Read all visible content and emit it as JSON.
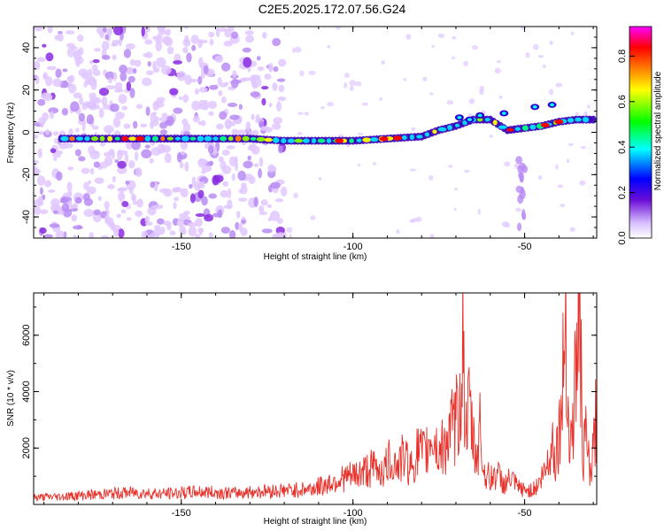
{
  "title": "C2E5.2025.172.07.56.G24",
  "chart_data": [
    {
      "type": "heatmap",
      "xlabel": "Height of straight line (km)",
      "ylabel": "Frequency (Hz)",
      "xlim": [
        -193,
        -29
      ],
      "ylim": [
        -50,
        50
      ],
      "xticks": [
        -150,
        -100,
        -50
      ],
      "yticks": [
        40,
        20,
        0,
        -20,
        -40
      ],
      "colorbar": {
        "label": "Normalized spectral amplitude",
        "range": [
          0.0,
          0.93
        ],
        "ticks": [
          0.0,
          0.2,
          0.4,
          0.6,
          0.8
        ],
        "colormap": "rainbow",
        "colors": [
          "#ffffff",
          "#e0c8ff",
          "#8a2be2",
          "#0000ff",
          "#00ffff",
          "#00ff00",
          "#ffff00",
          "#ff8000",
          "#ff0000",
          "#ff00ff"
        ]
      },
      "ridge": {
        "description_points_x": [
          -190,
          -170,
          -150,
          -130,
          -120,
          -110,
          -100,
          -90,
          -80,
          -75,
          -70,
          -65,
          -60,
          -55,
          -50,
          -45,
          -40,
          -35,
          -30
        ],
        "description_points_y": [
          -3,
          -3,
          -3,
          -3,
          -4,
          -4,
          -4,
          -3,
          -2,
          1,
          3,
          6,
          6,
          1,
          2,
          3,
          5,
          6,
          6
        ]
      },
      "noise_region_x": [
        -193,
        -120
      ]
    },
    {
      "type": "line",
      "xlabel": "Height of straight line (km)",
      "ylabel": "SNR (10 * v/v)",
      "xlim": [
        -193,
        -29
      ],
      "ylim": [
        0,
        7500
      ],
      "xticks": [
        -150,
        -100,
        -50
      ],
      "yticks": [
        2000,
        4000,
        6000
      ],
      "series": [
        {
          "color": "#e8312a",
          "x": [
            -193,
            -185,
            -175,
            -165,
            -155,
            -145,
            -135,
            -125,
            -118,
            -112,
            -108,
            -104,
            -100,
            -97,
            -94,
            -91,
            -89,
            -87,
            -85,
            -83,
            -81,
            -79,
            -77,
            -75,
            -73,
            -71,
            -69,
            -68,
            -67,
            -66,
            -65,
            -64,
            -63,
            -62,
            -60,
            -58,
            -56,
            -54,
            -52,
            -50,
            -48,
            -46,
            -44,
            -42,
            -41,
            -40,
            -39,
            -38,
            -37,
            -36,
            -35,
            -34,
            -33,
            -32,
            -31,
            -30,
            -29
          ],
          "y": [
            250,
            280,
            350,
            420,
            380,
            450,
            400,
            480,
            500,
            560,
            700,
            900,
            1000,
            1150,
            1300,
            1200,
            1600,
            1400,
            1700,
            1300,
            1900,
            1700,
            2500,
            1800,
            2200,
            2700,
            3200,
            5800,
            2500,
            3500,
            2200,
            1600,
            2800,
            1200,
            900,
            1100,
            700,
            900,
            600,
            500,
            500,
            700,
            1200,
            2200,
            1700,
            2500,
            3800,
            7500,
            1800,
            2800,
            4800,
            7000,
            1500,
            2600,
            900,
            1800,
            3500
          ]
        }
      ]
    }
  ]
}
